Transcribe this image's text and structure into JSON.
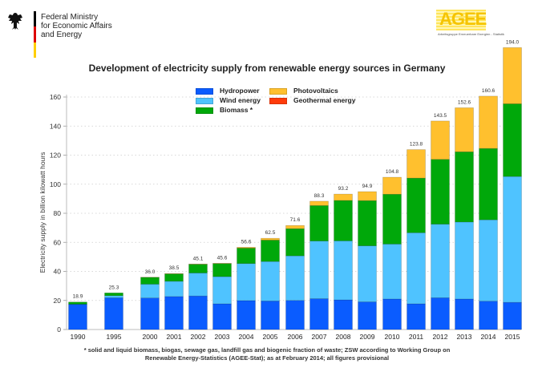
{
  "header": {
    "ministry_lines": [
      "Federal Ministry",
      "for Economic Affairs",
      "and Energy"
    ],
    "flag_colors": [
      "#000000",
      "#dd0000",
      "#ffce00"
    ],
    "agee_logo_text": "AGEE",
    "agee_logo_subtitle": "Arbeitsgruppe Erneuerbare Energien - Statistik"
  },
  "footnote": {
    "line1": "* solid and liquid biomass, biogas, sewage gas, landfill gas and biogenic fraction of waste; ZSW according to Working Group on",
    "line2": "Renewable Energy-Statistics (AGEE-Stat); as at February 2014; all figures provisional"
  },
  "chart_data": {
    "type": "bar",
    "stacked": true,
    "title": "Development of electricity supply from renewable energy sources in Germany",
    "xlabel": "",
    "ylabel": "Electricity supply in billion kilowatt hours",
    "ylim": [
      0,
      160
    ],
    "yticks": [
      0,
      20,
      40,
      60,
      80,
      100,
      120,
      140,
      160
    ],
    "grid": true,
    "legend_position": "top-center",
    "categories": [
      "1990",
      "1995",
      "2000",
      "2001",
      "2002",
      "2003",
      "2004",
      "2005",
      "2006",
      "2007",
      "2008",
      "2009",
      "2010",
      "2011",
      "2012",
      "2013",
      "2014",
      "2015"
    ],
    "totals": [
      "18.9",
      "25.3",
      "36.0",
      "38.5",
      "45.1",
      "45.6",
      "56.6",
      "62.5",
      "71.6",
      "88.3",
      "93.2",
      "94.9",
      "104.8",
      "123.8",
      "143.5",
      "152.6",
      "160.6",
      "194.0"
    ],
    "series": [
      {
        "name": "Hydropower",
        "color": "#0a5cff",
        "values": [
          17.4,
          21.8,
          21.7,
          22.7,
          23.1,
          17.7,
          19.9,
          19.6,
          20.0,
          21.2,
          20.4,
          19.0,
          21.0,
          17.7,
          21.8,
          21.0,
          19.5,
          18.7
        ]
      },
      {
        "name": "Wind energy",
        "color": "#4fc3ff",
        "values": [
          0.0,
          1.5,
          9.5,
          10.5,
          15.8,
          18.7,
          25.5,
          27.2,
          30.7,
          39.7,
          40.6,
          38.6,
          37.8,
          48.9,
          50.7,
          53.0,
          56.0,
          86.6
        ]
      },
      {
        "name": "Biomass *",
        "color": "#00a80a",
        "values": [
          1.5,
          1.9,
          4.7,
          5.1,
          6.0,
          9.0,
          10.6,
          14.7,
          18.7,
          24.4,
          27.8,
          31.1,
          34.3,
          37.6,
          44.6,
          48.3,
          49.1,
          50.0
        ]
      },
      {
        "name": "Photovoltaics",
        "color": "#ffc02e",
        "values": [
          0.0,
          0.0,
          0.1,
          0.2,
          0.2,
          0.2,
          0.6,
          1.3,
          2.2,
          3.0,
          4.4,
          6.2,
          11.7,
          19.6,
          26.4,
          30.3,
          36.0,
          38.7
        ]
      },
      {
        "name": "Geothermal energy",
        "color": "#ff3b0a",
        "values": [
          0,
          0,
          0,
          0,
          0,
          0,
          0,
          0,
          0,
          0,
          0,
          0,
          0,
          0,
          0,
          0,
          0,
          0
        ]
      }
    ]
  }
}
